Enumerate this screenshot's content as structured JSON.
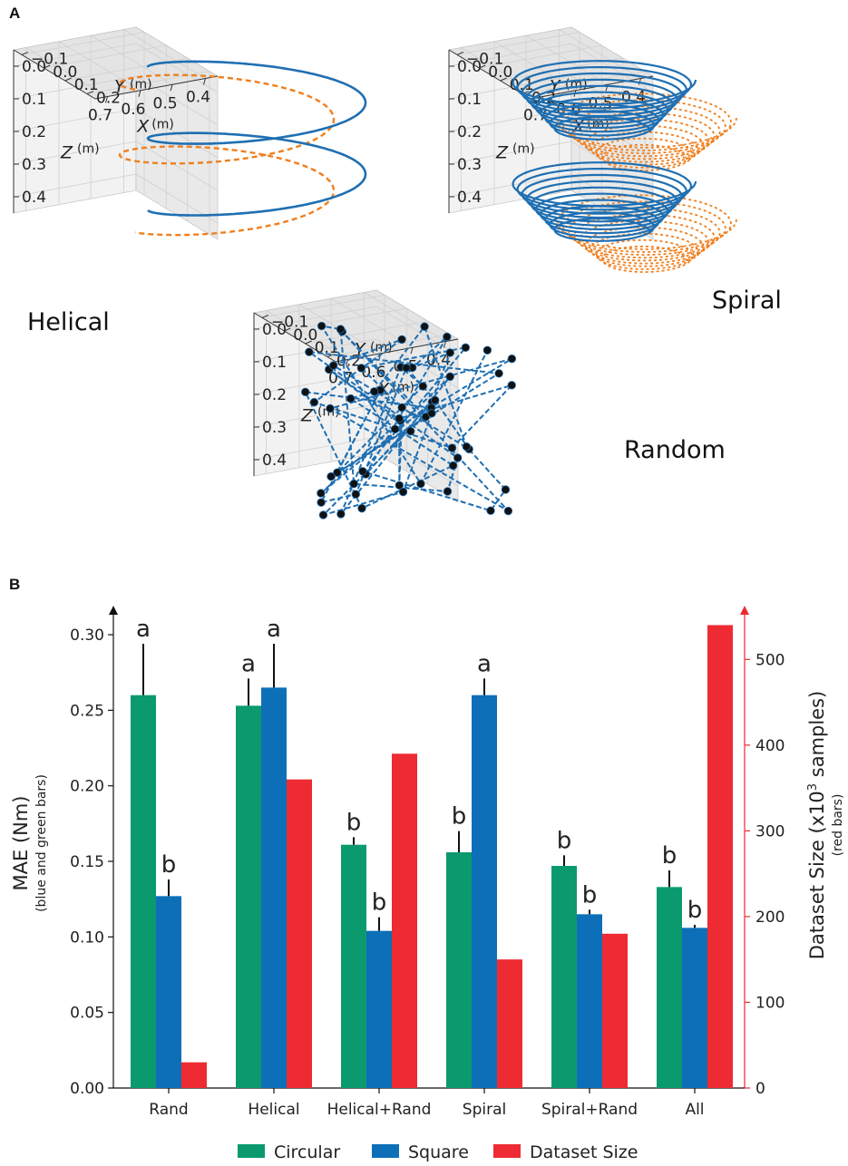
{
  "panels": {
    "a_letter": "A",
    "b_letter": "B",
    "helical_label": "Helical",
    "spiral_label": "Spiral",
    "random_label": "Random"
  },
  "axes3d": {
    "z_label": "Z",
    "y_label": "Y",
    "x_label": "X",
    "unit": "(m)",
    "z_ticks": [
      "0.0",
      "0.1",
      "0.2",
      "0.3",
      "0.4"
    ],
    "y_ticks": [
      "−0.1",
      "0.0",
      "0.1",
      "0.2"
    ],
    "x_ticks": [
      "0.4",
      "0.5",
      "0.6",
      "0.7"
    ]
  },
  "colors": {
    "circular": "#0a9a6e",
    "square": "#0d6fb8",
    "dataset": "#ee2a33",
    "traj_blue": "#1f6fb2",
    "traj_orange": "#f07f1e"
  },
  "chart_data": {
    "type": "bar",
    "categories": [
      "Rand",
      "Helical",
      "Helical+Rand",
      "Spiral",
      "Spiral+Rand",
      "All"
    ],
    "series": [
      {
        "name": "Circular",
        "axis": "left",
        "values": [
          0.26,
          0.253,
          0.161,
          0.156,
          0.147,
          0.133
        ],
        "errors": [
          0.034,
          0.018,
          0.005,
          0.014,
          0.007,
          0.011
        ],
        "letters": [
          "a",
          "a",
          "b",
          "b",
          "b",
          "b"
        ]
      },
      {
        "name": "Square",
        "axis": "left",
        "values": [
          0.127,
          0.265,
          0.104,
          0.26,
          0.115,
          0.106
        ],
        "errors": [
          0.011,
          0.029,
          0.009,
          0.011,
          0.003,
          0.002
        ],
        "letters": [
          "b",
          "a",
          "b",
          "a",
          "b",
          "b"
        ]
      },
      {
        "name": "Dataset Size",
        "axis": "right",
        "values": [
          30,
          360,
          390,
          150,
          180,
          540
        ],
        "errors": [],
        "letters": []
      }
    ],
    "ylabel": "MAE (Nm)",
    "ylabel_sub": "(blue and green bars)",
    "y2label_main": "Dataset Size (x10",
    "y2label_exp": "3",
    "y2label_end": " samples)",
    "y2label_sub": "(red bars)",
    "ylim": [
      0,
      0.3
    ],
    "y2lim": [
      0,
      550
    ],
    "yticks": [
      "0.00",
      "0.05",
      "0.10",
      "0.15",
      "0.20",
      "0.25",
      "0.30"
    ],
    "y2ticks": [
      "0",
      "100",
      "200",
      "300",
      "400",
      "500"
    ],
    "legend": [
      "Circular",
      "Square",
      "Dataset Size"
    ],
    "legend_position": "bottom"
  }
}
